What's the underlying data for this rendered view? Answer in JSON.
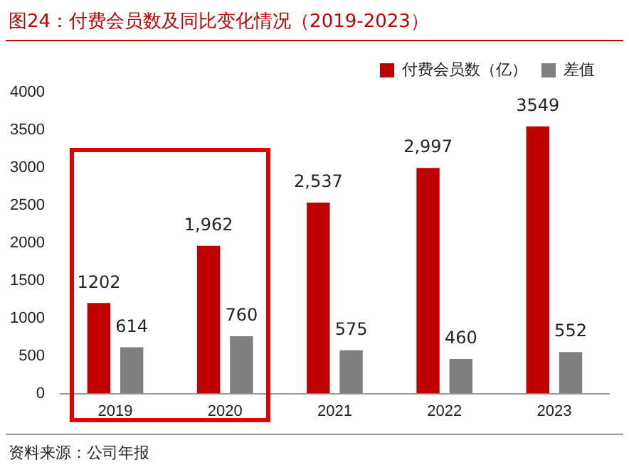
{
  "chart_data": {
    "type": "bar",
    "title": "图24：付费会员数及同比变化情况（2019-2023）",
    "categories": [
      "2019",
      "2020",
      "2021",
      "2022",
      "2023"
    ],
    "series": [
      {
        "name": "付费会员数（亿）",
        "color": "#c00000",
        "values": [
          1202,
          1962,
          2537,
          2997,
          3549
        ],
        "value_labels": [
          "1202",
          "1,962",
          "2,537",
          "2,997",
          "3549"
        ]
      },
      {
        "name": "差值",
        "color": "#7f7f7f",
        "values": [
          614,
          760,
          575,
          460,
          552
        ],
        "value_labels": [
          "614",
          "760",
          "575",
          "460",
          "552"
        ]
      }
    ],
    "ylim": [
      0,
      4000
    ],
    "yticks": [
      0,
      500,
      1000,
      1500,
      2000,
      2500,
      3000,
      3500,
      4000
    ],
    "grid": false,
    "legend": "top right",
    "annotations": [
      "资料来源：公司年报"
    ]
  }
}
